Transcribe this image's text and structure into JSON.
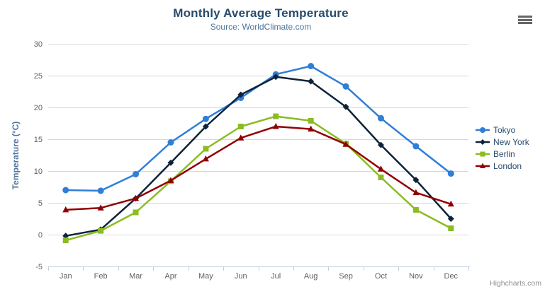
{
  "chart": {
    "title": "Monthly Average Temperature",
    "subtitle": "Source: WorldClimate.com",
    "y_axis_title": "Temperature (°C)",
    "credits": "Highcharts.com"
  },
  "chart_data": {
    "type": "line",
    "title": "Monthly Average Temperature",
    "subtitle": "Source: WorldClimate.com",
    "xlabel": "",
    "ylabel": "Temperature (°C)",
    "categories": [
      "Jan",
      "Feb",
      "Mar",
      "Apr",
      "May",
      "Jun",
      "Jul",
      "Aug",
      "Sep",
      "Oct",
      "Nov",
      "Dec"
    ],
    "series": [
      {
        "name": "Tokyo",
        "color": "#2f7ed8",
        "marker": "circle",
        "values": [
          7.0,
          6.9,
          9.5,
          14.5,
          18.2,
          21.5,
          25.2,
          26.5,
          23.3,
          18.3,
          13.9,
          9.6
        ]
      },
      {
        "name": "New York",
        "color": "#0d233a",
        "marker": "diamond",
        "values": [
          -0.2,
          0.8,
          5.7,
          11.3,
          17.0,
          22.0,
          24.8,
          24.1,
          20.1,
          14.1,
          8.6,
          2.5
        ]
      },
      {
        "name": "Berlin",
        "color": "#8bbc21",
        "marker": "square",
        "values": [
          -0.9,
          0.6,
          3.5,
          8.4,
          13.5,
          17.0,
          18.6,
          17.9,
          14.3,
          9.0,
          3.9,
          1.0
        ]
      },
      {
        "name": "London",
        "color": "#910000",
        "marker": "triangle",
        "values": [
          3.9,
          4.2,
          5.7,
          8.5,
          11.9,
          15.2,
          17.0,
          16.6,
          14.2,
          10.3,
          6.6,
          4.8
        ]
      }
    ],
    "ylim": [
      -5,
      30
    ],
    "yticks": [
      -5,
      0,
      5,
      10,
      15,
      20,
      25,
      30
    ],
    "grid": true,
    "legend_position": "right",
    "colors": {
      "grid_line": "#d8d8d8",
      "axis_line": "#c0d0e0",
      "tick": "#c0d0e0",
      "axis_label": "#606060",
      "title": "#274b6d",
      "subtitle": "#4d759e",
      "axis_title": "#4d759e",
      "legend_text": "#274b6d",
      "credits_text": "#909090"
    }
  }
}
